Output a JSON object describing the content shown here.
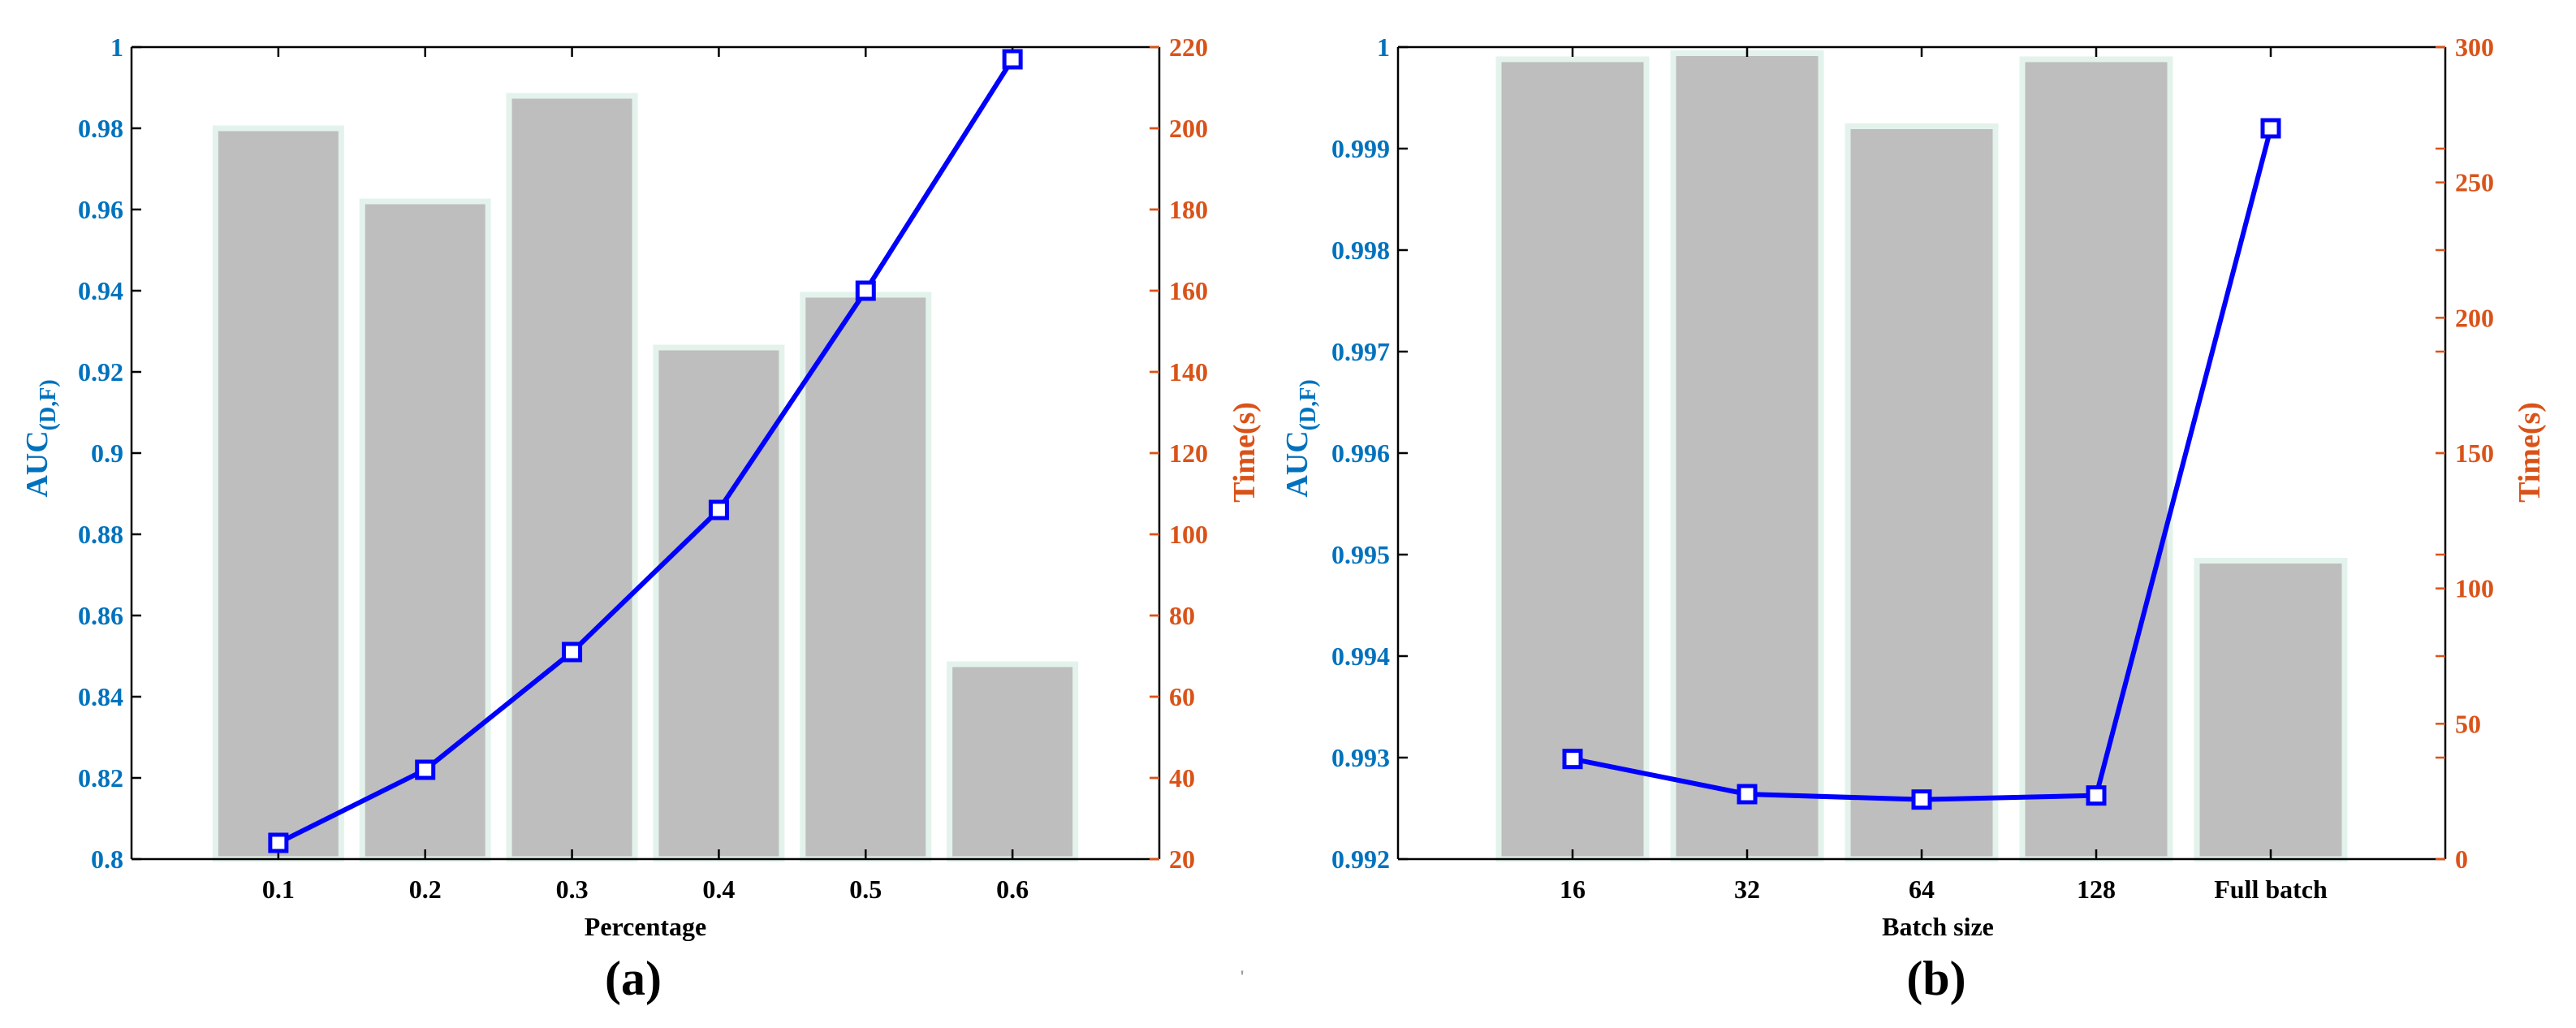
{
  "colors": {
    "bar": "#bebebe",
    "bar_edge": "#e3f3ec",
    "line": "#0000ff",
    "left_axis": "#0072bd",
    "right_axis": "#d95319",
    "axis": "#000000"
  },
  "stray_mark": "'",
  "chart_data": [
    {
      "type": "bar+line",
      "panel_label": "(a)",
      "xlabel": "Percentage",
      "ylabel_main": "AUC",
      "ylabel_sub": "(D,F)",
      "ylabel_right": "Time(s)",
      "categories": [
        "0.1",
        "0.2",
        "0.3",
        "0.4",
        "0.5",
        "0.6"
      ],
      "bar_values": [
        0.98,
        0.962,
        0.988,
        0.926,
        0.939,
        0.848
      ],
      "line_values": [
        24,
        42,
        71,
        106,
        160,
        217
      ],
      "ylim": [
        0.8,
        1.0
      ],
      "ylim_right": [
        20,
        220
      ],
      "yticks": [
        "0.8",
        "0.82",
        "0.84",
        "0.86",
        "0.88",
        "0.9",
        "0.92",
        "0.94",
        "0.96",
        "0.98",
        "1"
      ],
      "yticks_right": [
        "20",
        "40",
        "60",
        "80",
        "100",
        "120",
        "140",
        "160",
        "180",
        "200",
        "220"
      ],
      "grid": false
    },
    {
      "type": "bar+line",
      "panel_label": "(b)",
      "xlabel": "Batch size",
      "ylabel_main": "AUC",
      "ylabel_sub": "(D,F)",
      "ylabel_right": "Time(s)",
      "categories": [
        "16",
        "32",
        "64",
        "128",
        "Full batch"
      ],
      "bar_values": [
        0.99988,
        0.99994,
        0.99922,
        0.99988,
        0.99494
      ],
      "line_values": [
        37,
        24,
        22,
        23.5,
        270
      ],
      "ylim": [
        0.992,
        1.0
      ],
      "ylim_right": [
        0,
        300
      ],
      "yticks": [
        "0.992",
        "0.993",
        "0.994",
        "0.995",
        "0.996",
        "0.997",
        "0.998",
        "0.999",
        "1"
      ],
      "yticks_right": [
        "0",
        "50",
        "100",
        "150",
        "200",
        "250",
        "300"
      ],
      "grid": false
    }
  ]
}
